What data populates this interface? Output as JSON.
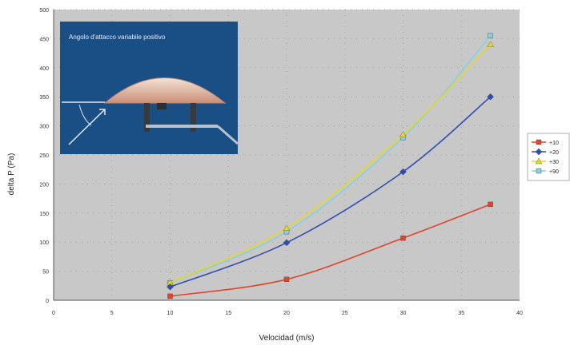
{
  "chart_data": {
    "type": "line",
    "title": "",
    "xlabel": "Velocidad (m/s)",
    "ylabel": "delta P (Pa)",
    "xlim": [
      0,
      40
    ],
    "ylim": [
      0,
      500
    ],
    "x_ticks": [
      0,
      5,
      10,
      15,
      20,
      25,
      30,
      35,
      40
    ],
    "y_ticks": [
      0,
      50,
      100,
      150,
      200,
      250,
      300,
      350,
      400,
      450,
      500
    ],
    "grid": "dotted",
    "legend_position": "right",
    "plot_background": "#c8c8c8",
    "series": [
      {
        "name": "+10",
        "color": "#e0442a",
        "marker": "square",
        "x": [
          10,
          20,
          30,
          37.5
        ],
        "y": [
          7,
          36,
          107,
          165
        ]
      },
      {
        "name": "+20",
        "color": "#2f4fb0",
        "marker": "diamond",
        "x": [
          10,
          20,
          30,
          37.5
        ],
        "y": [
          23,
          99,
          221,
          350
        ]
      },
      {
        "name": "+30",
        "color": "#e8d62a",
        "marker": "triangle",
        "x": [
          10,
          20,
          30,
          37.5
        ],
        "y": [
          30,
          124,
          285,
          440
        ]
      },
      {
        "name": "+90",
        "color": "#86d0e0",
        "marker": "square",
        "x": [
          10,
          20,
          30,
          37.5
        ],
        "y": [
          30,
          118,
          280,
          455
        ]
      }
    ],
    "inset": {
      "label": "Angolo d'attacco variabile positivo",
      "background": "#1a4f86",
      "icon": "dome-sensor-illustration"
    }
  }
}
